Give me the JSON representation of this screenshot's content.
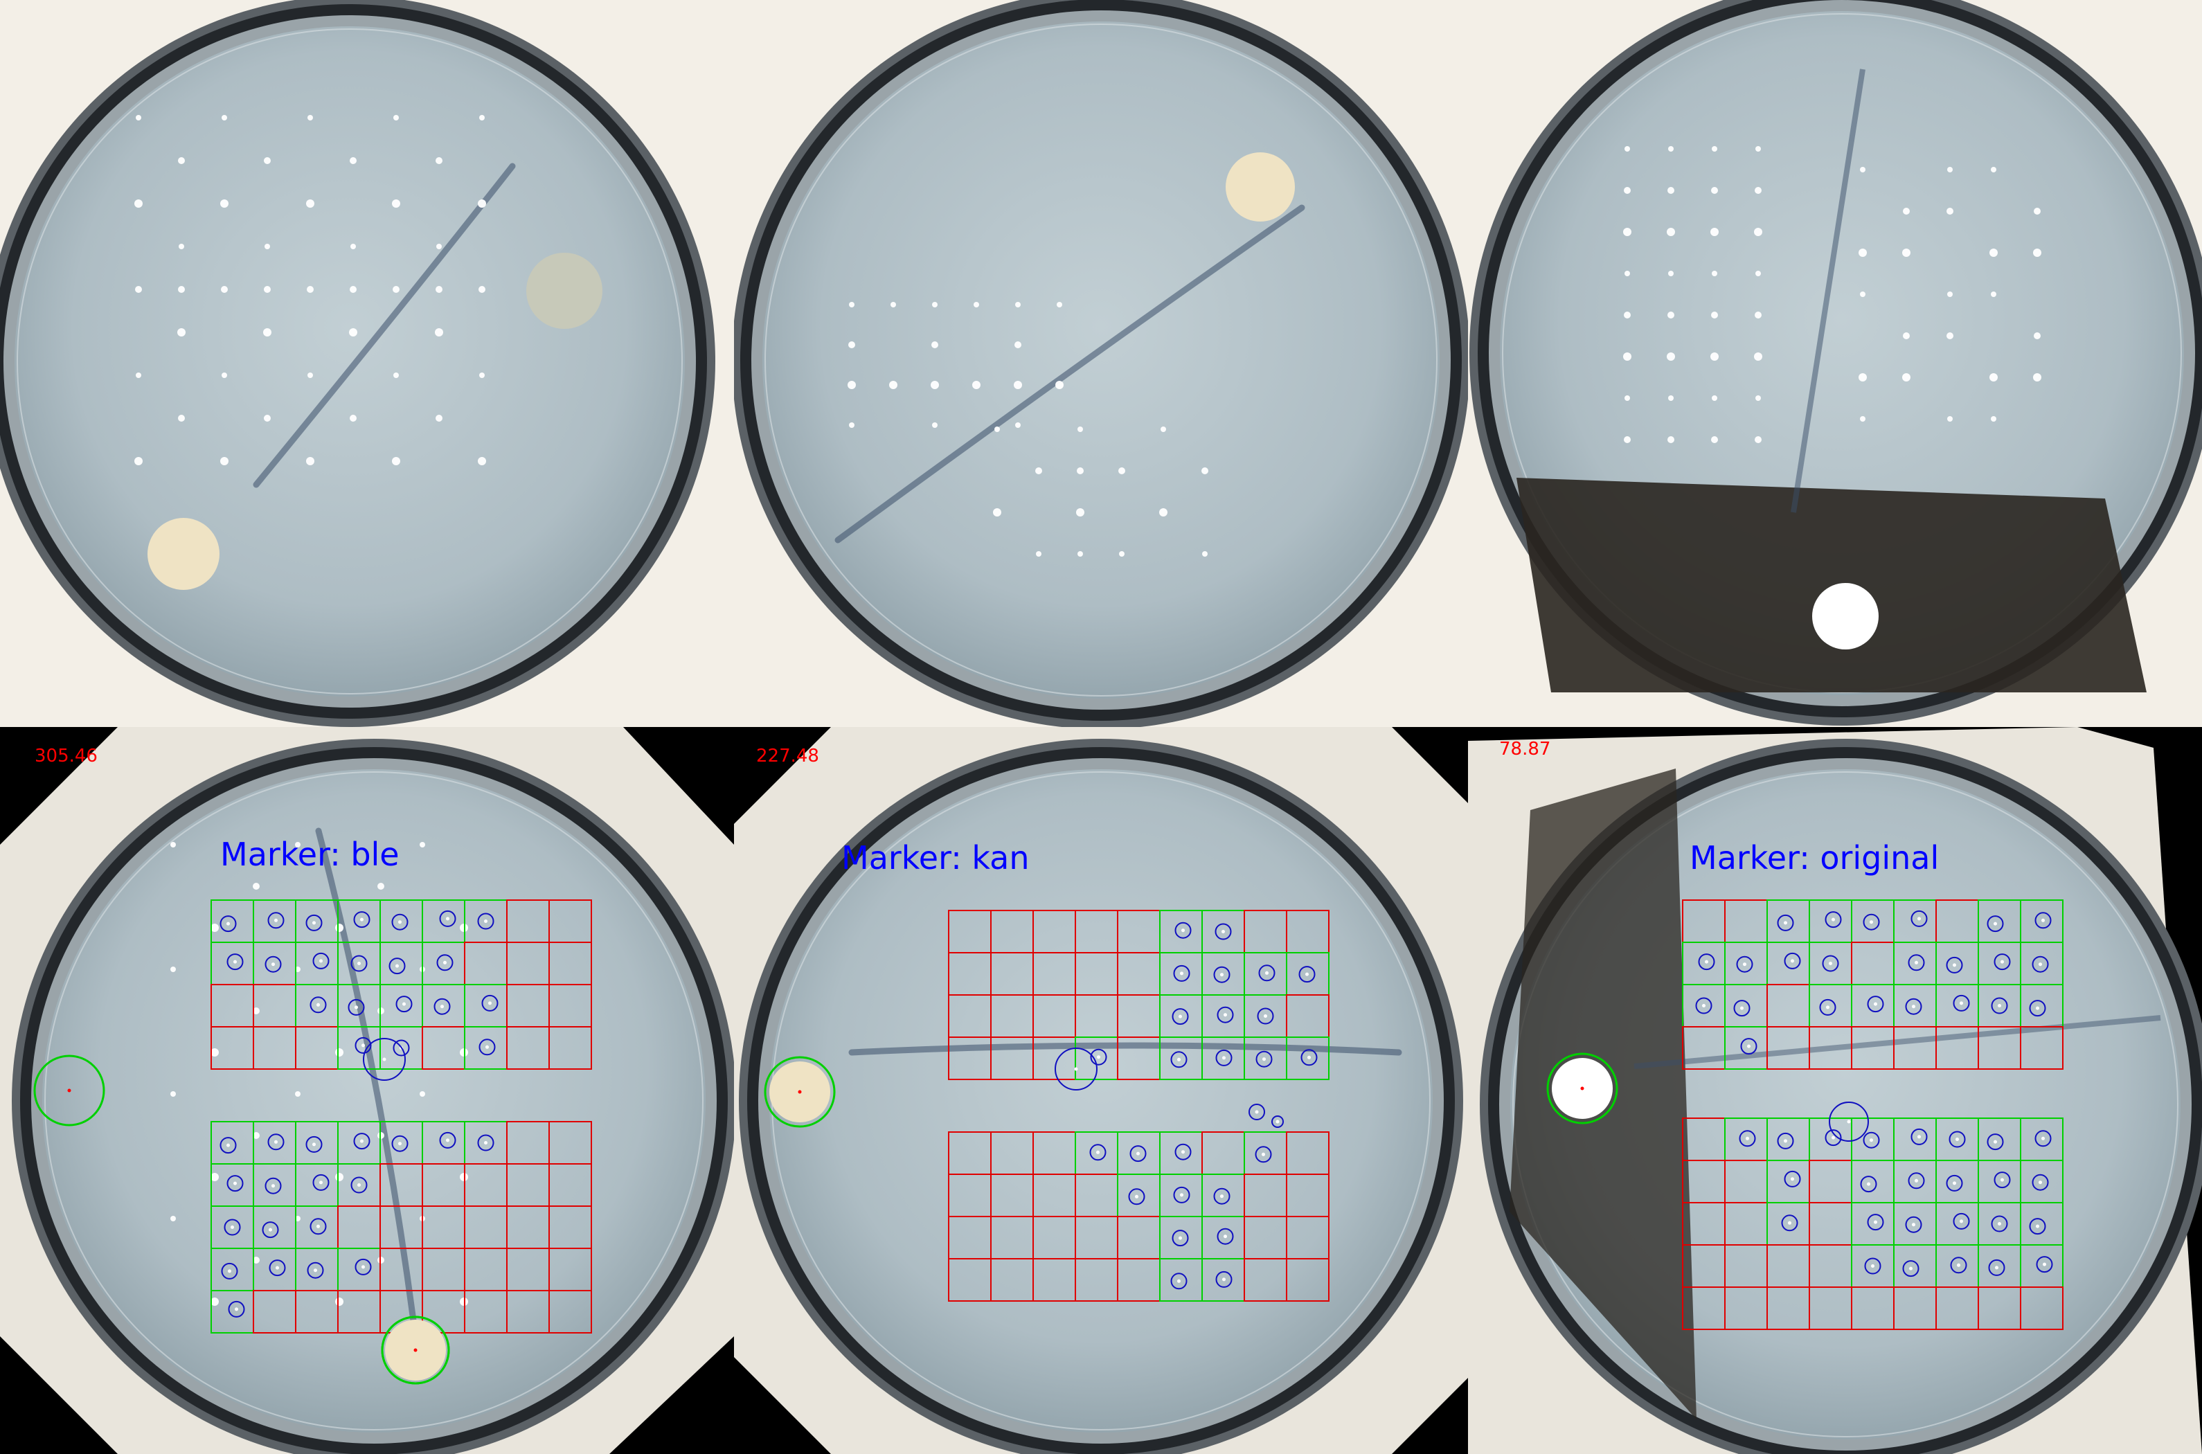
{
  "colors": {
    "grid_hit": "#00d000",
    "grid_miss": "#e00000",
    "colony": "#1010c0",
    "reference": "#00d000",
    "marker_text": "#0000ff",
    "angle_text": "#ff0000",
    "agar": "#aebdc4",
    "rim": "#2c3034",
    "background_top": "#f3efe7",
    "background_bottom": "#000000"
  },
  "top_row": [
    {
      "name": "plate-ble-raw"
    },
    {
      "name": "plate-kan-raw"
    },
    {
      "name": "plate-original-raw"
    }
  ],
  "bottom_row": [
    {
      "name": "plate-ble-annotated",
      "angle": "305.46",
      "marker": "Marker: ble"
    },
    {
      "name": "plate-kan-annotated",
      "angle": "227.48",
      "marker": "Marker: kan"
    },
    {
      "name": "plate-original-annotated",
      "angle": "78.87",
      "marker": "Marker: original"
    }
  ],
  "grid_hits": {
    "ble_upper": [
      [
        1,
        1,
        1,
        1,
        1,
        1,
        1,
        0,
        0
      ],
      [
        1,
        1,
        1,
        1,
        1,
        1,
        0,
        0,
        0
      ],
      [
        0,
        0,
        1,
        1,
        1,
        1,
        1,
        0,
        0
      ],
      [
        0,
        0,
        0,
        1,
        1,
        0,
        1,
        0,
        0
      ]
    ],
    "ble_lower": [
      [
        1,
        1,
        1,
        1,
        1,
        1,
        1,
        0,
        0
      ],
      [
        1,
        1,
        1,
        1,
        0,
        0,
        0,
        0,
        0
      ],
      [
        1,
        1,
        1,
        0,
        0,
        0,
        0,
        0,
        0
      ],
      [
        1,
        1,
        1,
        1,
        0,
        0,
        0,
        0,
        0
      ],
      [
        1,
        0,
        0,
        0,
        0,
        0,
        0,
        0,
        0
      ]
    ],
    "kan_upper": [
      [
        0,
        0,
        0,
        0,
        0,
        1,
        1,
        0,
        0
      ],
      [
        0,
        0,
        0,
        0,
        0,
        1,
        1,
        1,
        1
      ],
      [
        0,
        0,
        0,
        0,
        0,
        1,
        1,
        1,
        0
      ],
      [
        0,
        0,
        0,
        1,
        0,
        1,
        1,
        1,
        1
      ]
    ],
    "kan_lower": [
      [
        0,
        0,
        0,
        1,
        1,
        1,
        0,
        1,
        0
      ],
      [
        0,
        0,
        0,
        0,
        1,
        1,
        1,
        0,
        0
      ],
      [
        0,
        0,
        0,
        0,
        0,
        1,
        1,
        0,
        0
      ],
      [
        0,
        0,
        0,
        0,
        0,
        1,
        1,
        0,
        0
      ]
    ],
    "orig_upper": [
      [
        0,
        0,
        1,
        1,
        1,
        1,
        0,
        1,
        1
      ],
      [
        1,
        1,
        1,
        1,
        0,
        1,
        1,
        1,
        1
      ],
      [
        1,
        1,
        0,
        1,
        1,
        1,
        1,
        1,
        1
      ],
      [
        0,
        1,
        0,
        0,
        0,
        0,
        0,
        0,
        0
      ]
    ],
    "orig_lower": [
      [
        0,
        1,
        1,
        1,
        1,
        1,
        1,
        1,
        1
      ],
      [
        0,
        0,
        1,
        0,
        1,
        1,
        1,
        1,
        1
      ],
      [
        0,
        0,
        1,
        0,
        1,
        1,
        1,
        1,
        1
      ],
      [
        0,
        0,
        0,
        0,
        1,
        1,
        1,
        1,
        1
      ],
      [
        0,
        0,
        0,
        0,
        0,
        0,
        0,
        0,
        0
      ]
    ]
  }
}
